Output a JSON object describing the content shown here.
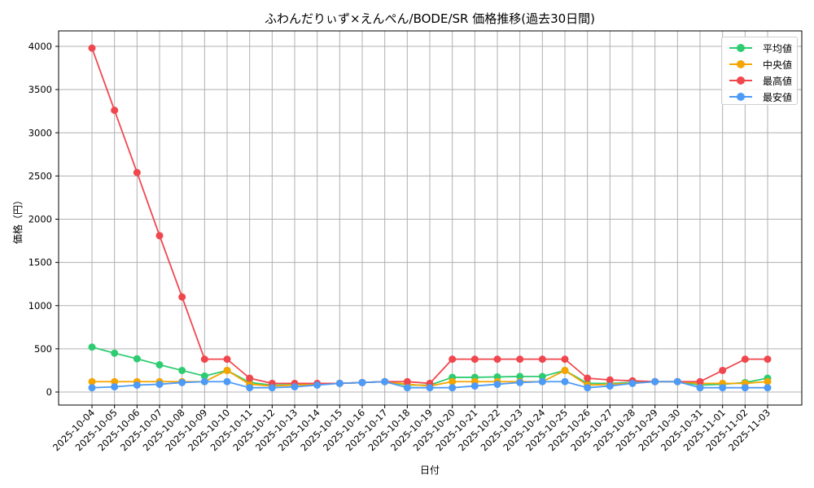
{
  "chart_data": {
    "type": "line",
    "title": "ふわんだりぃず×えんぺん/BODE/SR 価格推移(過去30日間)",
    "xlabel": "日付",
    "ylabel": "価格（円）",
    "ylim": [
      -150,
      4200
    ],
    "yticks": [
      0,
      500,
      1000,
      1500,
      2000,
      2500,
      3000,
      3500,
      4000
    ],
    "grid": true,
    "legend_position": "upper right",
    "categories": [
      "2025-10-04",
      "2025-10-05",
      "2025-10-06",
      "2025-10-07",
      "2025-10-08",
      "2025-10-09",
      "2025-10-10",
      "2025-10-11",
      "2025-10-12",
      "2025-10-13",
      "2025-10-14",
      "2025-10-15",
      "2025-10-16",
      "2025-10-17",
      "2025-10-18",
      "2025-10-19",
      "2025-10-20",
      "2025-10-21",
      "2025-10-22",
      "2025-10-23",
      "2025-10-24",
      "2025-10-25",
      "2025-10-26",
      "2025-10-27",
      "2025-10-28",
      "2025-10-29",
      "2025-10-30",
      "2025-10-31",
      "2025-11-01",
      "2025-11-02",
      "2025-11-03"
    ],
    "series": [
      {
        "name": "平均値",
        "color": "#2ecc71",
        "values": [
          520,
          450,
          385,
          315,
          250,
          185,
          250,
          110,
          80,
          85,
          90,
          100,
          110,
          120,
          80,
          80,
          170,
          170,
          175,
          180,
          180,
          250,
          100,
          100,
          110,
          120,
          120,
          80,
          90,
          110,
          160
        ]
      },
      {
        "name": "中央値",
        "color": "#f5a500",
        "values": [
          120,
          120,
          120,
          120,
          120,
          120,
          250,
          90,
          70,
          80,
          90,
          100,
          110,
          120,
          90,
          70,
          120,
          120,
          120,
          120,
          120,
          250,
          80,
          90,
          100,
          120,
          120,
          100,
          100,
          100,
          120
        ]
      },
      {
        "name": "最高値",
        "color": "#f0474e",
        "values": [
          3980,
          3260,
          2540,
          1810,
          1100,
          380,
          380,
          160,
          100,
          100,
          100,
          100,
          110,
          120,
          120,
          100,
          380,
          380,
          380,
          380,
          380,
          380,
          160,
          140,
          130,
          120,
          120,
          120,
          250,
          380,
          380
        ]
      },
      {
        "name": "最安値",
        "color": "#4d9bf7",
        "values": [
          50,
          60,
          80,
          90,
          110,
          120,
          120,
          50,
          50,
          60,
          80,
          100,
          110,
          120,
          50,
          50,
          50,
          70,
          90,
          110,
          120,
          120,
          50,
          70,
          100,
          120,
          120,
          50,
          50,
          50,
          50
        ]
      }
    ]
  },
  "legend": {
    "items": [
      {
        "label": "平均値",
        "color": "#2ecc71"
      },
      {
        "label": "中央値",
        "color": "#f5a500"
      },
      {
        "label": "最高値",
        "color": "#f0474e"
      },
      {
        "label": "最安値",
        "color": "#4d9bf7"
      }
    ]
  }
}
